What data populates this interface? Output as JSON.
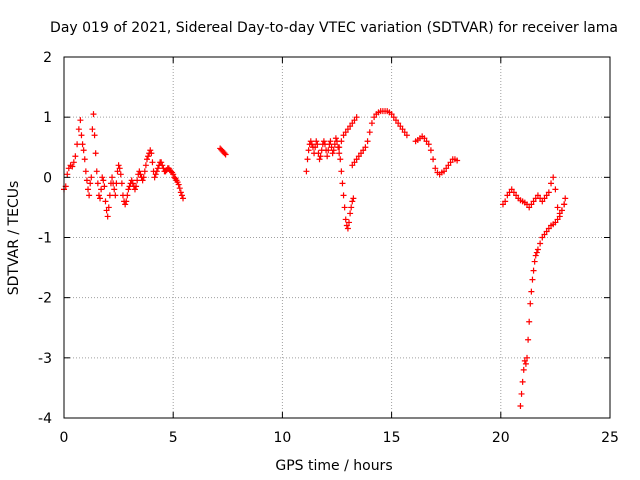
{
  "chart_data": {
    "type": "scatter",
    "title": "Day 019 of 2021, Sidereal Day-to-day VTEC variation (SDTVAR) for receiver lama",
    "xlabel": "GPS time / hours",
    "ylabel": "SDTVAR / TECUs",
    "xlim": [
      0,
      25
    ],
    "ylim": [
      -4,
      2
    ],
    "xticks": [
      0,
      5,
      10,
      15,
      20,
      25
    ],
    "yticks": [
      -4,
      -3,
      -2,
      -1,
      0,
      1,
      2
    ],
    "grid": true,
    "marker": "+",
    "series": [
      {
        "name": "SDTVAR",
        "color": "#ff0000",
        "points": [
          [
            0.0,
            -0.2
          ],
          [
            0.08,
            -0.15
          ],
          [
            0.15,
            0.05
          ],
          [
            0.22,
            0.15
          ],
          [
            0.3,
            0.2
          ],
          [
            0.38,
            0.18
          ],
          [
            0.45,
            0.25
          ],
          [
            0.52,
            0.35
          ],
          [
            0.6,
            0.55
          ],
          [
            0.68,
            0.8
          ],
          [
            0.75,
            0.95
          ],
          [
            0.8,
            0.7
          ],
          [
            0.85,
            0.55
          ],
          [
            0.9,
            0.45
          ],
          [
            0.95,
            0.3
          ],
          [
            1.0,
            0.1
          ],
          [
            1.05,
            -0.05
          ],
          [
            1.1,
            -0.2
          ],
          [
            1.15,
            -0.3
          ],
          [
            1.2,
            -0.1
          ],
          [
            1.25,
            0.0
          ],
          [
            1.3,
            0.8
          ],
          [
            1.35,
            1.05
          ],
          [
            1.4,
            0.7
          ],
          [
            1.45,
            0.4
          ],
          [
            1.5,
            0.1
          ],
          [
            1.55,
            -0.1
          ],
          [
            1.6,
            -0.3
          ],
          [
            1.65,
            -0.35
          ],
          [
            1.7,
            -0.2
          ],
          [
            1.75,
            0.0
          ],
          [
            1.8,
            -0.05
          ],
          [
            1.85,
            -0.15
          ],
          [
            1.9,
            -0.4
          ],
          [
            1.95,
            -0.55
          ],
          [
            2.0,
            -0.65
          ],
          [
            2.05,
            -0.5
          ],
          [
            2.1,
            -0.3
          ],
          [
            2.15,
            -0.1
          ],
          [
            2.2,
            0.0
          ],
          [
            2.25,
            -0.1
          ],
          [
            2.3,
            -0.2
          ],
          [
            2.35,
            -0.3
          ],
          [
            2.4,
            -0.1
          ],
          [
            2.45,
            0.1
          ],
          [
            2.5,
            0.2
          ],
          [
            2.55,
            0.15
          ],
          [
            2.6,
            0.05
          ],
          [
            2.65,
            -0.1
          ],
          [
            2.7,
            -0.3
          ],
          [
            2.75,
            -0.4
          ],
          [
            2.8,
            -0.45
          ],
          [
            2.85,
            -0.4
          ],
          [
            2.9,
            -0.3
          ],
          [
            2.95,
            -0.2
          ],
          [
            3.0,
            -0.15
          ],
          [
            3.05,
            -0.1
          ],
          [
            3.1,
            -0.05
          ],
          [
            3.15,
            -0.1
          ],
          [
            3.2,
            -0.15
          ],
          [
            3.25,
            -0.2
          ],
          [
            3.3,
            -0.15
          ],
          [
            3.35,
            -0.05
          ],
          [
            3.4,
            0.05
          ],
          [
            3.45,
            0.1
          ],
          [
            3.5,
            0.05
          ],
          [
            3.55,
            0.0
          ],
          [
            3.6,
            -0.05
          ],
          [
            3.65,
            0.0
          ],
          [
            3.7,
            0.1
          ],
          [
            3.75,
            0.2
          ],
          [
            3.8,
            0.3
          ],
          [
            3.85,
            0.35
          ],
          [
            3.9,
            0.4
          ],
          [
            3.95,
            0.45
          ],
          [
            4.0,
            0.4
          ],
          [
            4.05,
            0.25
          ],
          [
            4.1,
            0.1
          ],
          [
            4.15,
            0.0
          ],
          [
            4.2,
            0.05
          ],
          [
            4.25,
            0.1
          ],
          [
            4.3,
            0.15
          ],
          [
            4.35,
            0.2
          ],
          [
            4.4,
            0.25
          ],
          [
            4.45,
            0.25
          ],
          [
            4.5,
            0.2
          ],
          [
            4.55,
            0.15
          ],
          [
            4.6,
            0.1
          ],
          [
            4.65,
            0.1
          ],
          [
            4.7,
            0.12
          ],
          [
            4.75,
            0.15
          ],
          [
            4.8,
            0.15
          ],
          [
            4.85,
            0.12
          ],
          [
            4.9,
            0.1
          ],
          [
            4.95,
            0.08
          ],
          [
            5.0,
            0.05
          ],
          [
            5.05,
            0.0
          ],
          [
            5.1,
            -0.02
          ],
          [
            5.15,
            -0.05
          ],
          [
            5.2,
            -0.08
          ],
          [
            5.25,
            -0.12
          ],
          [
            5.3,
            -0.18
          ],
          [
            5.35,
            -0.25
          ],
          [
            5.4,
            -0.3
          ],
          [
            5.45,
            -0.35
          ],
          [
            7.15,
            0.48
          ],
          [
            7.2,
            0.46
          ],
          [
            7.25,
            0.44
          ],
          [
            7.3,
            0.42
          ],
          [
            7.35,
            0.4
          ],
          [
            7.4,
            0.38
          ],
          [
            11.1,
            0.1
          ],
          [
            11.15,
            0.3
          ],
          [
            11.2,
            0.45
          ],
          [
            11.25,
            0.55
          ],
          [
            11.3,
            0.6
          ],
          [
            11.35,
            0.55
          ],
          [
            11.4,
            0.5
          ],
          [
            11.45,
            0.4
          ],
          [
            11.5,
            0.5
          ],
          [
            11.55,
            0.6
          ],
          [
            11.6,
            0.55
          ],
          [
            11.65,
            0.4
          ],
          [
            11.7,
            0.3
          ],
          [
            11.75,
            0.35
          ],
          [
            11.8,
            0.45
          ],
          [
            11.85,
            0.55
          ],
          [
            11.9,
            0.6
          ],
          [
            11.95,
            0.55
          ],
          [
            12.0,
            0.45
          ],
          [
            12.05,
            0.35
          ],
          [
            12.1,
            0.45
          ],
          [
            12.15,
            0.55
          ],
          [
            12.2,
            0.6
          ],
          [
            12.25,
            0.5
          ],
          [
            12.3,
            0.4
          ],
          [
            12.35,
            0.45
          ],
          [
            12.4,
            0.55
          ],
          [
            12.45,
            0.65
          ],
          [
            12.5,
            0.6
          ],
          [
            12.55,
            0.5
          ],
          [
            12.6,
            0.4
          ],
          [
            12.65,
            0.3
          ],
          [
            12.7,
            0.1
          ],
          [
            12.75,
            -0.1
          ],
          [
            12.8,
            -0.3
          ],
          [
            12.85,
            -0.5
          ],
          [
            12.9,
            -0.7
          ],
          [
            12.95,
            -0.8
          ],
          [
            13.0,
            -0.85
          ],
          [
            13.05,
            -0.75
          ],
          [
            13.1,
            -0.6
          ],
          [
            13.15,
            -0.5
          ],
          [
            13.2,
            -0.4
          ],
          [
            13.25,
            -0.35
          ],
          [
            12.6,
            0.5
          ],
          [
            12.7,
            0.6
          ],
          [
            12.8,
            0.7
          ],
          [
            12.9,
            0.75
          ],
          [
            13.0,
            0.8
          ],
          [
            13.1,
            0.85
          ],
          [
            13.2,
            0.9
          ],
          [
            13.3,
            0.95
          ],
          [
            13.4,
            1.0
          ],
          [
            13.2,
            0.2
          ],
          [
            13.3,
            0.25
          ],
          [
            13.4,
            0.3
          ],
          [
            13.5,
            0.35
          ],
          [
            13.6,
            0.4
          ],
          [
            13.7,
            0.45
          ],
          [
            13.8,
            0.5
          ],
          [
            13.9,
            0.6
          ],
          [
            14.0,
            0.75
          ],
          [
            14.1,
            0.9
          ],
          [
            14.2,
            1.0
          ],
          [
            14.3,
            1.05
          ],
          [
            14.4,
            1.08
          ],
          [
            14.5,
            1.1
          ],
          [
            14.6,
            1.1
          ],
          [
            14.7,
            1.1
          ],
          [
            14.8,
            1.1
          ],
          [
            14.9,
            1.08
          ],
          [
            15.0,
            1.05
          ],
          [
            15.1,
            1.0
          ],
          [
            15.2,
            0.95
          ],
          [
            15.3,
            0.9
          ],
          [
            15.4,
            0.85
          ],
          [
            15.5,
            0.8
          ],
          [
            15.6,
            0.75
          ],
          [
            15.7,
            0.7
          ],
          [
            16.1,
            0.6
          ],
          [
            16.2,
            0.62
          ],
          [
            16.3,
            0.65
          ],
          [
            16.4,
            0.68
          ],
          [
            16.5,
            0.65
          ],
          [
            16.6,
            0.6
          ],
          [
            16.7,
            0.55
          ],
          [
            16.8,
            0.45
          ],
          [
            16.9,
            0.3
          ],
          [
            17.0,
            0.15
          ],
          [
            17.1,
            0.08
          ],
          [
            17.2,
            0.05
          ],
          [
            17.3,
            0.08
          ],
          [
            17.4,
            0.1
          ],
          [
            17.5,
            0.15
          ],
          [
            17.6,
            0.2
          ],
          [
            17.7,
            0.25
          ],
          [
            17.8,
            0.3
          ],
          [
            17.9,
            0.3
          ],
          [
            18.0,
            0.28
          ],
          [
            20.1,
            -0.45
          ],
          [
            20.2,
            -0.4
          ],
          [
            20.3,
            -0.3
          ],
          [
            20.4,
            -0.25
          ],
          [
            20.5,
            -0.2
          ],
          [
            20.6,
            -0.25
          ],
          [
            20.7,
            -0.3
          ],
          [
            20.8,
            -0.35
          ],
          [
            20.9,
            -0.38
          ],
          [
            21.0,
            -0.4
          ],
          [
            21.1,
            -0.42
          ],
          [
            21.2,
            -0.45
          ],
          [
            21.3,
            -0.5
          ],
          [
            21.4,
            -0.45
          ],
          [
            21.5,
            -0.4
          ],
          [
            21.6,
            -0.35
          ],
          [
            21.7,
            -0.3
          ],
          [
            21.8,
            -0.35
          ],
          [
            21.9,
            -0.4
          ],
          [
            22.0,
            -0.35
          ],
          [
            22.1,
            -0.3
          ],
          [
            22.2,
            -0.25
          ],
          [
            22.3,
            -0.1
          ],
          [
            22.4,
            0.0
          ],
          [
            22.5,
            -0.2
          ],
          [
            22.6,
            -0.5
          ],
          [
            22.7,
            -0.6
          ],
          [
            22.8,
            -0.55
          ],
          [
            22.9,
            -0.45
          ],
          [
            22.95,
            -0.35
          ],
          [
            20.9,
            -3.8
          ],
          [
            20.95,
            -3.6
          ],
          [
            21.0,
            -3.4
          ],
          [
            21.05,
            -3.2
          ],
          [
            21.1,
            -3.05
          ],
          [
            21.15,
            -3.1
          ],
          [
            21.2,
            -3.0
          ],
          [
            21.25,
            -2.7
          ],
          [
            21.3,
            -2.4
          ],
          [
            21.35,
            -2.1
          ],
          [
            21.4,
            -1.9
          ],
          [
            21.45,
            -1.7
          ],
          [
            21.5,
            -1.55
          ],
          [
            21.55,
            -1.4
          ],
          [
            21.6,
            -1.3
          ],
          [
            21.65,
            -1.25
          ],
          [
            21.7,
            -1.2
          ],
          [
            21.8,
            -1.1
          ],
          [
            21.9,
            -1.0
          ],
          [
            22.0,
            -0.95
          ],
          [
            22.1,
            -0.9
          ],
          [
            22.2,
            -0.85
          ],
          [
            22.3,
            -0.8
          ],
          [
            22.4,
            -0.78
          ],
          [
            22.5,
            -0.75
          ],
          [
            22.6,
            -0.7
          ],
          [
            22.7,
            -0.65
          ],
          [
            22.8,
            -0.55
          ],
          [
            22.9,
            -0.45
          ]
        ]
      }
    ]
  }
}
